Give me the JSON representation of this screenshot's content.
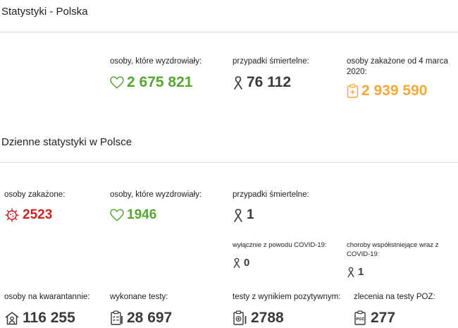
{
  "colors": {
    "recovered": "#57a632",
    "deaths": "#3a3a3a",
    "infected_total": "#f4a93b",
    "infected_daily": "#cc2323"
  },
  "poland": {
    "title": "Statystyki - Polska",
    "recovered": {
      "label": "osoby, które wyzdrowiały:",
      "value": "2 675 821",
      "icon": "heart-icon"
    },
    "deaths": {
      "label": "przypadki śmiertelne:",
      "value": "76 112",
      "icon": "ribbon-icon"
    },
    "infected": {
      "label": "osoby zakażone od 4 marca 2020:",
      "value": "2 939 590",
      "icon": "clipboard-icon"
    }
  },
  "daily": {
    "title": "Dzienne statystyki w Polsce",
    "infected": {
      "label": "osoby zakażone:",
      "value": "2523",
      "icon": "virus-icon"
    },
    "recovered": {
      "label": "osoby, które wyzdrowiały:",
      "value": "1946",
      "icon": "heart-icon"
    },
    "deaths": {
      "label": "przypadki śmiertelne:",
      "value": "1",
      "icon": "ribbon-icon"
    },
    "deaths_covid_only": {
      "label": "wyłącznie z powodu COVID-19:",
      "value": "0",
      "icon": "ribbon-icon"
    },
    "deaths_comorbid": {
      "label": "choroby współistniejące wraz z COVID-19:",
      "value": "1",
      "icon": "ribbon-icon"
    },
    "quarantine": {
      "label": "osoby na kwarantannie:",
      "value": "116 255",
      "icon": "house-person-icon"
    },
    "tests": {
      "label": "wykonane testy:",
      "value": "28 697",
      "icon": "test-list-icon"
    },
    "positive_tests": {
      "label": "testy z wynikiem pozytywnym:",
      "value": "2788",
      "icon": "positive-test-icon"
    },
    "poz_orders": {
      "label": "zlecenia na testy POZ:",
      "value": "277",
      "icon": "poz-clipboard-icon",
      "icon_text": "POZ"
    }
  }
}
